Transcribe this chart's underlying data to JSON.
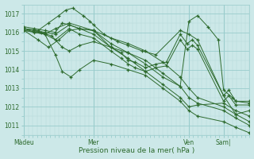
{
  "xlabel": "Pression niveau de la mer( hPa )",
  "bg_color": "#cce8e8",
  "grid_major_color": "#99cccc",
  "grid_minor_color": "#b3d9d9",
  "line_color": "#2d6a2d",
  "ylim": [
    1010.5,
    1017.5
  ],
  "xlim": [
    0,
    130
  ],
  "yticks": [
    1011,
    1012,
    1013,
    1014,
    1015,
    1016,
    1017
  ],
  "xtick_labels": [
    "Màdeu",
    "Mer",
    "Ven",
    "Sam|"
  ],
  "xtick_positions": [
    0,
    40,
    95,
    115
  ],
  "series": [
    {
      "x": [
        0,
        12,
        18,
        22,
        27,
        32,
        40,
        50,
        60,
        70,
        80,
        90,
        95,
        100,
        115,
        122,
        130
      ],
      "y": [
        1016.1,
        1015.9,
        1014.8,
        1013.9,
        1013.6,
        1014.0,
        1014.5,
        1014.3,
        1014.0,
        1013.7,
        1013.0,
        1012.3,
        1011.8,
        1011.5,
        1011.2,
        1010.9,
        1010.6
      ]
    },
    {
      "x": [
        0,
        10,
        16,
        22,
        26,
        32,
        40,
        50,
        60,
        70,
        80,
        90,
        95,
        100,
        115,
        122,
        130
      ],
      "y": [
        1016.1,
        1016.0,
        1015.8,
        1015.2,
        1015.0,
        1015.3,
        1015.5,
        1015.2,
        1014.9,
        1014.5,
        1013.8,
        1013.1,
        1012.5,
        1012.2,
        1011.8,
        1011.4,
        1011.0
      ]
    },
    {
      "x": [
        0,
        8,
        14,
        20,
        26,
        32,
        40,
        50,
        60,
        70,
        80,
        90,
        95,
        100,
        115,
        122,
        130
      ],
      "y": [
        1016.1,
        1015.6,
        1015.2,
        1015.6,
        1016.1,
        1016.2,
        1016.1,
        1015.7,
        1015.4,
        1015.0,
        1014.4,
        1013.6,
        1013.0,
        1012.5,
        1012.0,
        1011.6,
        1011.2
      ]
    },
    {
      "x": [
        0,
        8,
        14,
        20,
        24,
        28,
        34,
        38,
        40,
        46,
        54,
        60,
        68,
        76,
        90,
        95,
        100,
        115,
        122,
        130
      ],
      "y": [
        1016.2,
        1016.1,
        1016.5,
        1016.9,
        1017.2,
        1017.3,
        1016.9,
        1016.6,
        1016.4,
        1015.9,
        1015.5,
        1015.3,
        1015.0,
        1014.8,
        1016.1,
        1015.9,
        1015.6,
        1012.6,
        1011.6,
        1011.8
      ]
    },
    {
      "x": [
        0,
        6,
        12,
        18,
        26,
        40,
        50,
        60,
        70,
        80,
        90,
        95,
        100,
        115,
        122,
        130
      ],
      "y": [
        1016.2,
        1016.1,
        1015.9,
        1016.2,
        1016.5,
        1016.1,
        1015.2,
        1014.6,
        1013.9,
        1013.2,
        1012.5,
        1012.0,
        1012.1,
        1012.2,
        1011.8,
        1011.5
      ]
    },
    {
      "x": [
        0,
        6,
        12,
        18,
        26,
        32,
        40,
        50,
        56,
        60,
        64,
        70,
        76,
        82,
        90,
        94,
        97,
        100,
        115,
        118,
        122,
        130
      ],
      "y": [
        1016.2,
        1016.0,
        1015.9,
        1015.6,
        1016.2,
        1015.9,
        1015.7,
        1015.0,
        1014.6,
        1014.3,
        1014.1,
        1013.9,
        1014.1,
        1014.2,
        1015.6,
        1015.1,
        1015.3,
        1015.1,
        1012.3,
        1012.6,
        1012.1,
        1012.1
      ]
    },
    {
      "x": [
        0,
        6,
        12,
        18,
        26,
        32,
        40,
        50,
        56,
        60,
        64,
        70,
        76,
        82,
        90,
        94,
        97,
        100,
        115,
        118,
        122,
        130
      ],
      "y": [
        1016.2,
        1016.1,
        1016.0,
        1015.9,
        1016.4,
        1016.2,
        1015.9,
        1015.2,
        1014.9,
        1014.5,
        1014.4,
        1014.1,
        1014.3,
        1014.4,
        1015.9,
        1015.4,
        1015.6,
        1015.3,
        1012.6,
        1012.9,
        1012.3,
        1012.2
      ]
    },
    {
      "x": [
        0,
        6,
        12,
        18,
        22,
        26,
        32,
        40,
        50,
        60,
        70,
        80,
        90,
        95,
        100,
        106,
        112,
        115,
        120,
        122,
        130
      ],
      "y": [
        1016.3,
        1016.2,
        1016.1,
        1016.0,
        1016.5,
        1016.4,
        1016.2,
        1016.1,
        1015.4,
        1014.9,
        1014.3,
        1013.6,
        1013.1,
        1016.6,
        1016.9,
        1016.3,
        1015.6,
        1012.9,
        1012.5,
        1012.3,
        1012.3
      ]
    }
  ]
}
